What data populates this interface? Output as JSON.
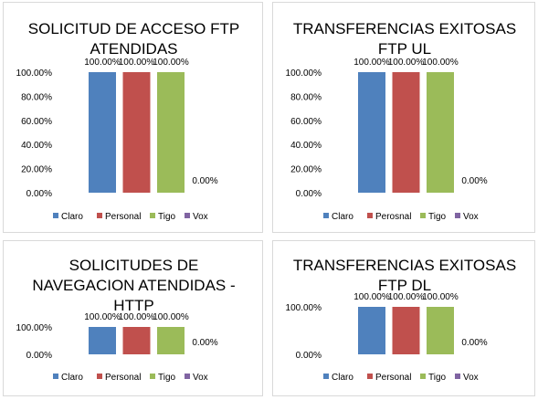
{
  "charts": [
    {
      "title_lines": [
        "SOLICITUD DE ACCESO FTP",
        "ATENDIDAS"
      ],
      "chart_data": {
        "type": "bar",
        "title": "SOLICITUD DE ACCESO FTP ATENDIDAS",
        "categories": [
          "Claro",
          "Personal",
          "Tigo",
          "Vox"
        ],
        "values": [
          100,
          100,
          100,
          0
        ],
        "data_labels": [
          "100.00%",
          "100.00%",
          "100.00%",
          "0.00%"
        ],
        "yticks": [
          "0.00%",
          "20.00%",
          "40.00%",
          "60.00%",
          "80.00%",
          "100.00%"
        ],
        "ylim": [
          0,
          100
        ],
        "legend": "bottom",
        "grid": false,
        "colors": [
          "#4f81bd",
          "#c0504d",
          "#9bbb59",
          "#8064a2"
        ]
      }
    },
    {
      "title_lines": [
        "TRANSFERENCIAS EXITOSAS",
        "FTP UL"
      ],
      "chart_data": {
        "type": "bar",
        "title": "TRANSFERENCIAS EXITOSAS FTP UL",
        "categories": [
          "Claro",
          "Perosnal",
          "Tigo",
          "Vox"
        ],
        "values": [
          100,
          100,
          100,
          0
        ],
        "data_labels": [
          "100.00%",
          "100.00%",
          "100.00%",
          "0.00%"
        ],
        "yticks": [
          "0.00%",
          "20.00%",
          "40.00%",
          "60.00%",
          "80.00%",
          "100.00%"
        ],
        "ylim": [
          0,
          100
        ],
        "legend": "bottom",
        "grid": false,
        "colors": [
          "#4f81bd",
          "#c0504d",
          "#9bbb59",
          "#8064a2"
        ]
      }
    },
    {
      "title_lines": [
        "SOLICITUDES DE",
        "NAVEGACION ATENDIDAS -",
        "HTTP"
      ],
      "chart_data": {
        "type": "bar",
        "title": "SOLICITUDES DE NAVEGACION ATENDIDAS - HTTP",
        "categories": [
          "Claro",
          "Personal",
          "Tigo",
          "Vox"
        ],
        "values": [
          100,
          100,
          100,
          0
        ],
        "data_labels": [
          "100.00%",
          "100.00%",
          "100.00%",
          "0.00%"
        ],
        "yticks": [
          "0.00%",
          "100.00%"
        ],
        "ylim": [
          0,
          100
        ],
        "legend": "bottom",
        "grid": false,
        "colors": [
          "#4f81bd",
          "#c0504d",
          "#9bbb59",
          "#8064a2"
        ]
      }
    },
    {
      "title_lines": [
        "TRANSFERENCIAS EXITOSAS",
        "FTP DL"
      ],
      "chart_data": {
        "type": "bar",
        "title": "TRANSFERENCIAS EXITOSAS FTP DL",
        "categories": [
          "Claro",
          "Personal",
          "Tigo",
          "Vox"
        ],
        "values": [
          100,
          100,
          100,
          0
        ],
        "data_labels": [
          "100.00%",
          "100.00%",
          "100.00%",
          "0.00%"
        ],
        "yticks": [
          "0.00%",
          "100.00%"
        ],
        "ylim": [
          0,
          100
        ],
        "legend": "bottom",
        "grid": false,
        "colors": [
          "#4f81bd",
          "#c0504d",
          "#9bbb59",
          "#8064a2"
        ]
      }
    }
  ]
}
